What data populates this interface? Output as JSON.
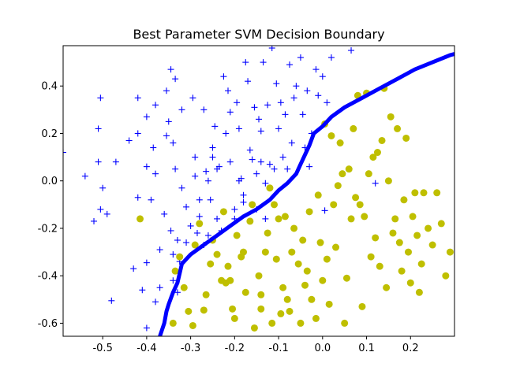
{
  "chart_data": {
    "type": "scatter",
    "title": "Best Parameter SVM Decision Boundary",
    "xlabel": "",
    "ylabel": "",
    "xlim": [
      -0.59,
      0.3
    ],
    "ylim": [
      -0.655,
      0.57
    ],
    "xticks": [
      -0.5,
      -0.4,
      -0.3,
      -0.2,
      -0.1,
      0.0,
      0.1,
      0.2
    ],
    "xtick_labels": [
      "-0.5",
      "-0.4",
      "-0.3",
      "-0.2",
      "-0.1",
      "0.0",
      "0.1",
      "0.2"
    ],
    "yticks": [
      -0.6,
      -0.4,
      -0.2,
      0.0,
      0.2,
      0.4
    ],
    "ytick_labels": [
      "-0.6",
      "-0.4",
      "-0.2",
      "0.0",
      "0.2",
      "0.4"
    ],
    "grid": false,
    "series": [
      {
        "marker": "plus",
        "color": "#0000ff",
        "points": [
          [
            -0.59,
            0.12
          ],
          [
            -0.54,
            0.02
          ],
          [
            -0.52,
            -0.17
          ],
          [
            -0.51,
            0.08
          ],
          [
            -0.51,
            0.22
          ],
          [
            -0.505,
            0.35
          ],
          [
            -0.505,
            -0.12
          ],
          [
            -0.5,
            -0.03
          ],
          [
            -0.49,
            -0.14
          ],
          [
            -0.48,
            -0.505
          ],
          [
            -0.47,
            0.08
          ],
          [
            -0.44,
            0.17
          ],
          [
            -0.43,
            -0.37
          ],
          [
            -0.42,
            0.35
          ],
          [
            -0.42,
            0.2
          ],
          [
            -0.42,
            -0.07
          ],
          [
            -0.41,
            -0.46
          ],
          [
            -0.4,
            0.27
          ],
          [
            -0.4,
            0.06
          ],
          [
            -0.4,
            -0.345
          ],
          [
            -0.4,
            -0.62
          ],
          [
            -0.39,
            -0.08
          ],
          [
            -0.385,
            0.14
          ],
          [
            -0.38,
            0.32
          ],
          [
            -0.38,
            0.03
          ],
          [
            -0.38,
            -0.51
          ],
          [
            -0.37,
            -0.45
          ],
          [
            -0.37,
            -0.29
          ],
          [
            -0.36,
            -0.14
          ],
          [
            -0.355,
            0.38
          ],
          [
            -0.355,
            0.19
          ],
          [
            -0.35,
            0.25
          ],
          [
            -0.345,
            0.47
          ],
          [
            -0.345,
            -0.21
          ],
          [
            -0.34,
            0.16
          ],
          [
            -0.34,
            -0.42
          ],
          [
            -0.34,
            -0.31
          ],
          [
            -0.335,
            0.43
          ],
          [
            -0.335,
            0.05
          ],
          [
            -0.33,
            -0.47
          ],
          [
            -0.33,
            -0.25
          ],
          [
            -0.325,
            -0.34
          ],
          [
            -0.32,
            0.3
          ],
          [
            -0.32,
            -0.03
          ],
          [
            -0.31,
            -0.26
          ],
          [
            -0.31,
            -0.11
          ],
          [
            -0.3,
            -0.19
          ],
          [
            -0.295,
            0.35
          ],
          [
            -0.29,
            0.1
          ],
          [
            -0.29,
            0.02
          ],
          [
            -0.285,
            -0.22
          ],
          [
            -0.28,
            -0.08
          ],
          [
            -0.28,
            -0.15
          ],
          [
            -0.27,
            0.3
          ],
          [
            -0.27,
            -0.27
          ],
          [
            -0.265,
            0.04
          ],
          [
            -0.26,
            0.0
          ],
          [
            -0.26,
            -0.23
          ],
          [
            -0.255,
            -0.08
          ],
          [
            -0.25,
            0.14
          ],
          [
            -0.25,
            0.1
          ],
          [
            -0.245,
            0.23
          ],
          [
            -0.24,
            -0.16
          ],
          [
            -0.24,
            0.05
          ],
          [
            -0.235,
            0.06
          ],
          [
            -0.23,
            -0.21
          ],
          [
            -0.225,
            0.44
          ],
          [
            -0.22,
            0.2
          ],
          [
            -0.215,
            0.38
          ],
          [
            -0.21,
            0.29
          ],
          [
            -0.21,
            0.08
          ],
          [
            -0.2,
            -0.12
          ],
          [
            -0.2,
            -0.16
          ],
          [
            -0.195,
            0.33
          ],
          [
            -0.19,
            0.0
          ],
          [
            -0.19,
            0.22
          ],
          [
            -0.185,
            0.01
          ],
          [
            -0.18,
            -0.09
          ],
          [
            -0.18,
            -0.06
          ],
          [
            -0.175,
            0.5
          ],
          [
            -0.17,
            0.42
          ],
          [
            -0.165,
            0.13
          ],
          [
            -0.16,
            0.09
          ],
          [
            -0.155,
            0.31
          ],
          [
            -0.15,
            0.03
          ],
          [
            -0.15,
            -0.12
          ],
          [
            -0.145,
            0.26
          ],
          [
            -0.14,
            0.21
          ],
          [
            -0.14,
            0.08
          ],
          [
            -0.135,
            0.5
          ],
          [
            -0.13,
            -0.01
          ],
          [
            -0.13,
            -0.16
          ],
          [
            -0.125,
            0.32
          ],
          [
            -0.12,
            0.07
          ],
          [
            -0.115,
            0.56
          ],
          [
            -0.11,
            0.05
          ],
          [
            -0.105,
            0.41
          ],
          [
            -0.1,
            0.22
          ],
          [
            -0.095,
            0.33
          ],
          [
            -0.09,
            0.1
          ],
          [
            -0.085,
            0.28
          ],
          [
            -0.08,
            0.05
          ],
          [
            -0.075,
            0.49
          ],
          [
            -0.07,
            0.16
          ],
          [
            -0.065,
            0.35
          ],
          [
            -0.06,
            0.4
          ],
          [
            -0.05,
            0.52
          ],
          [
            -0.045,
            0.28
          ],
          [
            -0.04,
            0.14
          ],
          [
            -0.035,
            0.38
          ],
          [
            -0.03,
            0.06
          ],
          [
            -0.025,
            0.2
          ],
          [
            -0.015,
            0.47
          ],
          [
            -0.01,
            0.36
          ],
          [
            0.0,
            0.44
          ],
          [
            0.005,
            -0.125
          ],
          [
            0.01,
            0.33
          ],
          [
            0.02,
            0.52
          ],
          [
            0.065,
            0.55
          ],
          [
            0.12,
            -0.01
          ]
        ]
      },
      {
        "marker": "circle",
        "color": "#bfbf00",
        "points": [
          [
            -0.415,
            -0.16
          ],
          [
            -0.34,
            -0.6
          ],
          [
            -0.335,
            -0.38
          ],
          [
            -0.325,
            -0.32
          ],
          [
            -0.315,
            -0.45
          ],
          [
            -0.305,
            -0.55
          ],
          [
            -0.295,
            -0.61
          ],
          [
            -0.29,
            -0.27
          ],
          [
            -0.28,
            -0.18
          ],
          [
            -0.27,
            -0.545
          ],
          [
            -0.265,
            -0.48
          ],
          [
            -0.255,
            -0.35
          ],
          [
            -0.25,
            -0.25
          ],
          [
            -0.24,
            -0.31
          ],
          [
            -0.23,
            -0.42
          ],
          [
            -0.225,
            -0.13
          ],
          [
            -0.22,
            -0.43
          ],
          [
            -0.215,
            -0.36
          ],
          [
            -0.21,
            -0.42
          ],
          [
            -0.205,
            -0.54
          ],
          [
            -0.2,
            -0.58
          ],
          [
            -0.195,
            -0.23
          ],
          [
            -0.185,
            -0.32
          ],
          [
            -0.18,
            -0.3
          ],
          [
            -0.175,
            -0.47
          ],
          [
            -0.165,
            -0.17
          ],
          [
            -0.16,
            -0.1
          ],
          [
            -0.155,
            -0.62
          ],
          [
            -0.145,
            -0.4
          ],
          [
            -0.14,
            -0.48
          ],
          [
            -0.14,
            -0.54
          ],
          [
            -0.13,
            -0.3
          ],
          [
            -0.125,
            -0.22
          ],
          [
            -0.12,
            -0.03
          ],
          [
            -0.115,
            -0.6
          ],
          [
            -0.11,
            -0.1
          ],
          [
            -0.105,
            -0.33
          ],
          [
            -0.1,
            -0.16
          ],
          [
            -0.095,
            -0.56
          ],
          [
            -0.09,
            -0.45
          ],
          [
            -0.085,
            -0.15
          ],
          [
            -0.08,
            -0.5
          ],
          [
            -0.075,
            -0.55
          ],
          [
            -0.07,
            -0.3
          ],
          [
            -0.065,
            -0.2
          ],
          [
            -0.055,
            -0.35
          ],
          [
            -0.05,
            -0.6
          ],
          [
            -0.045,
            -0.25
          ],
          [
            -0.04,
            -0.44
          ],
          [
            -0.035,
            -0.38
          ],
          [
            -0.03,
            -0.13
          ],
          [
            -0.025,
            -0.5
          ],
          [
            -0.015,
            -0.58
          ],
          [
            -0.01,
            -0.06
          ],
          [
            -0.005,
            -0.26
          ],
          [
            0.0,
            -0.42
          ],
          [
            0.005,
            0.24
          ],
          [
            0.01,
            -0.33
          ],
          [
            0.015,
            -0.52
          ],
          [
            0.02,
            0.19
          ],
          [
            0.025,
            -0.1
          ],
          [
            0.03,
            -0.28
          ],
          [
            0.035,
            -0.02
          ],
          [
            0.04,
            0.16
          ],
          [
            0.045,
            0.03
          ],
          [
            0.05,
            -0.6
          ],
          [
            0.055,
            -0.41
          ],
          [
            0.06,
            0.05
          ],
          [
            0.065,
            -0.16
          ],
          [
            0.07,
            0.22
          ],
          [
            0.075,
            -0.07
          ],
          [
            0.08,
            0.36
          ],
          [
            0.085,
            -0.1
          ],
          [
            0.09,
            -0.53
          ],
          [
            0.095,
            -0.15
          ],
          [
            0.1,
            0.37
          ],
          [
            0.105,
            0.03
          ],
          [
            0.11,
            -0.32
          ],
          [
            0.115,
            0.1
          ],
          [
            0.12,
            -0.24
          ],
          [
            0.125,
            0.12
          ],
          [
            0.13,
            -0.36
          ],
          [
            0.135,
            0.17
          ],
          [
            0.14,
            0.39
          ],
          [
            0.145,
            -0.45
          ],
          [
            0.15,
            0.0
          ],
          [
            0.155,
            0.27
          ],
          [
            0.16,
            -0.22
          ],
          [
            0.165,
            -0.16
          ],
          [
            0.17,
            0.22
          ],
          [
            0.175,
            -0.26
          ],
          [
            0.18,
            -0.38
          ],
          [
            0.185,
            -0.08
          ],
          [
            0.19,
            0.18
          ],
          [
            0.195,
            -0.3
          ],
          [
            0.2,
            -0.43
          ],
          [
            0.205,
            -0.15
          ],
          [
            0.21,
            -0.05
          ],
          [
            0.215,
            -0.23
          ],
          [
            0.22,
            -0.47
          ],
          [
            0.225,
            -0.35
          ],
          [
            0.23,
            -0.05
          ],
          [
            0.24,
            -0.2
          ],
          [
            0.25,
            -0.27
          ],
          [
            0.26,
            -0.05
          ],
          [
            0.27,
            -0.18
          ],
          [
            0.28,
            -0.4
          ],
          [
            0.29,
            -0.3
          ]
        ]
      }
    ],
    "decision_boundary": {
      "color": "#0000ff",
      "points": [
        [
          -0.37,
          -0.655
        ],
        [
          -0.36,
          -0.6
        ],
        [
          -0.355,
          -0.55
        ],
        [
          -0.35,
          -0.52
        ],
        [
          -0.34,
          -0.47
        ],
        [
          -0.33,
          -0.43
        ],
        [
          -0.32,
          -0.35
        ],
        [
          -0.3,
          -0.31
        ],
        [
          -0.27,
          -0.27
        ],
        [
          -0.24,
          -0.23
        ],
        [
          -0.21,
          -0.19
        ],
        [
          -0.18,
          -0.15
        ],
        [
          -0.15,
          -0.12
        ],
        [
          -0.12,
          -0.08
        ],
        [
          -0.1,
          -0.04
        ],
        [
          -0.08,
          -0.01
        ],
        [
          -0.06,
          0.03
        ],
        [
          -0.05,
          0.07
        ],
        [
          -0.04,
          0.11
        ],
        [
          -0.03,
          0.15
        ],
        [
          -0.02,
          0.2
        ],
        [
          0.0,
          0.23
        ],
        [
          0.02,
          0.27
        ],
        [
          0.05,
          0.31
        ],
        [
          0.09,
          0.35
        ],
        [
          0.13,
          0.39
        ],
        [
          0.17,
          0.43
        ],
        [
          0.21,
          0.47
        ],
        [
          0.25,
          0.5
        ],
        [
          0.29,
          0.53
        ],
        [
          0.3,
          0.535
        ]
      ]
    }
  }
}
